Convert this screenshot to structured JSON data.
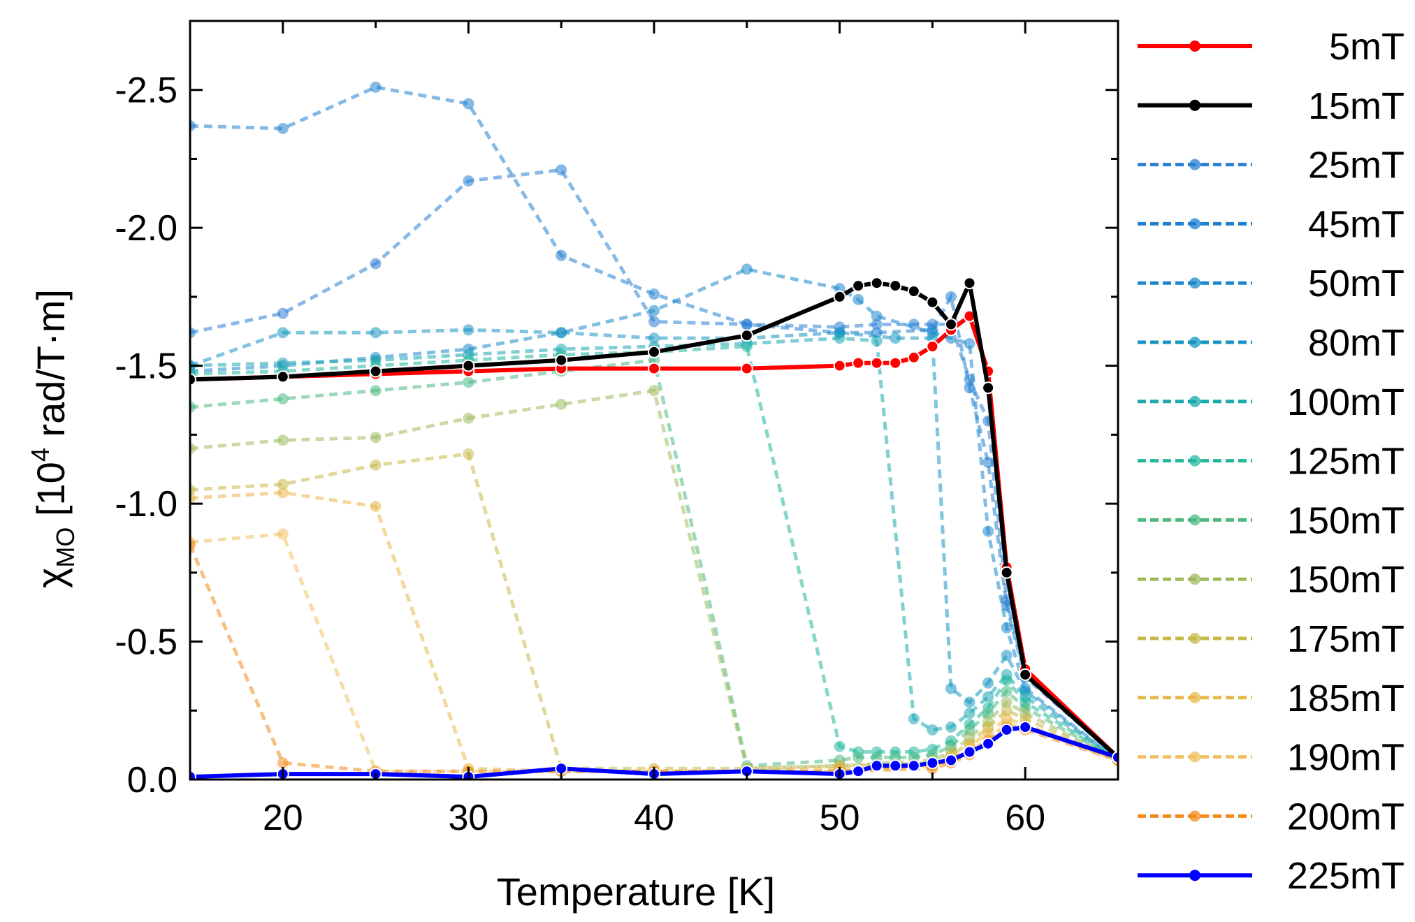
{
  "chart_data": {
    "type": "line",
    "xlabel": "Temperature [K]",
    "ylabel": {
      "symbol": "χ",
      "subscript": "MO",
      "unit_prefix": " [10",
      "exponent": "4",
      "unit_suffix": " rad/T·m]"
    },
    "xlim": [
      15,
      65
    ],
    "ylim": [
      0.0,
      -2.75
    ],
    "y_reversed": true,
    "x_ticks": [
      20,
      30,
      40,
      50,
      60
    ],
    "y_ticks": [
      0.0,
      -0.5,
      -1.0,
      -1.5,
      -2.0,
      -2.5
    ],
    "x_tick_labels": [
      "20",
      "30",
      "40",
      "50",
      "60"
    ],
    "y_tick_labels": [
      "0.0",
      "-0.5",
      "-1.0",
      "-1.5",
      "-2.0",
      "-2.5"
    ],
    "series": [
      {
        "name": "5mT",
        "color": "#ff0000",
        "style": "solid",
        "x": [
          15,
          20,
          25,
          30,
          35,
          40,
          45,
          50,
          51,
          52,
          53,
          54,
          55,
          56,
          57,
          58,
          59,
          60,
          65
        ],
        "y": [
          -1.45,
          -1.46,
          -1.47,
          -1.48,
          -1.49,
          -1.49,
          -1.49,
          -1.5,
          -1.51,
          -1.51,
          -1.51,
          -1.53,
          -1.57,
          -1.63,
          -1.68,
          -1.48,
          -0.77,
          -0.4,
          -0.08
        ]
      },
      {
        "name": "15mT",
        "color": "#000000",
        "style": "solid",
        "x": [
          15,
          20,
          25,
          30,
          35,
          40,
          45,
          50,
          51,
          52,
          53,
          54,
          55,
          56,
          57,
          58,
          59,
          60,
          65
        ],
        "y": [
          -1.45,
          -1.46,
          -1.48,
          -1.5,
          -1.52,
          -1.55,
          -1.61,
          -1.75,
          -1.79,
          -1.8,
          -1.79,
          -1.77,
          -1.73,
          -1.65,
          -1.8,
          -1.42,
          -0.75,
          -0.38,
          -0.08
        ]
      },
      {
        "name": "25mT",
        "color": "#2a7fd6",
        "style": "dashed",
        "x": [
          15,
          20,
          25,
          30,
          35,
          40,
          45,
          50,
          52,
          54,
          55,
          56,
          57,
          58,
          59,
          60,
          65
        ],
        "y": [
          -1.62,
          -1.69,
          -1.87,
          -2.17,
          -2.21,
          -1.66,
          -1.65,
          -1.64,
          -1.65,
          -1.65,
          -1.65,
          -1.65,
          -1.45,
          -1.3,
          -0.65,
          -0.38,
          -0.08
        ]
      },
      {
        "name": "45mT",
        "color": "#2080d2",
        "style": "dashed",
        "x": [
          15,
          20,
          25,
          30,
          35,
          40,
          45,
          50,
          52,
          55,
          56,
          57,
          58,
          59,
          60,
          65
        ],
        "y": [
          -2.37,
          -2.36,
          -2.51,
          -2.45,
          -1.9,
          -1.76,
          -1.65,
          -1.62,
          -1.62,
          -1.63,
          -1.75,
          -1.42,
          -1.15,
          -0.63,
          -0.37,
          -0.08
        ]
      },
      {
        "name": "50mT",
        "color": "#1c88cc",
        "style": "dashed",
        "x": [
          15,
          20,
          25,
          30,
          35,
          40,
          45,
          50,
          51,
          52,
          55,
          56,
          57,
          58,
          59,
          60,
          65
        ],
        "y": [
          -1.48,
          -1.5,
          -1.53,
          -1.56,
          -1.62,
          -1.7,
          -1.85,
          -1.78,
          -1.74,
          -1.68,
          -1.62,
          -1.6,
          -1.58,
          -0.9,
          -0.55,
          -0.33,
          -0.07
        ]
      },
      {
        "name": "80mT",
        "color": "#1595c2",
        "style": "dashed",
        "x": [
          15,
          20,
          25,
          30,
          35,
          40,
          45,
          50,
          53,
          55,
          56,
          57,
          58,
          59,
          60,
          65
        ],
        "y": [
          -1.5,
          -1.62,
          -1.62,
          -1.63,
          -1.62,
          -1.6,
          -1.6,
          -1.62,
          -1.6,
          -1.6,
          -0.33,
          -0.28,
          -0.35,
          -0.45,
          -0.32,
          -0.07
        ]
      },
      {
        "name": "100mT",
        "color": "#1aa8b0",
        "style": "dashed",
        "x": [
          15,
          20,
          25,
          30,
          35,
          40,
          45,
          50,
          52,
          54,
          55,
          56,
          57,
          58,
          59,
          60,
          65
        ],
        "y": [
          -1.5,
          -1.51,
          -1.52,
          -1.54,
          -1.56,
          -1.57,
          -1.58,
          -1.6,
          -1.59,
          -0.22,
          -0.18,
          -0.19,
          -0.24,
          -0.3,
          -0.38,
          -0.3,
          -0.07
        ]
      },
      {
        "name": "125mT",
        "color": "#20b89c",
        "style": "dashed",
        "x": [
          15,
          20,
          25,
          30,
          35,
          40,
          45,
          50,
          51,
          52,
          53,
          54,
          55,
          56,
          57,
          58,
          59,
          60,
          65
        ],
        "y": [
          -1.47,
          -1.48,
          -1.5,
          -1.52,
          -1.54,
          -1.55,
          -1.57,
          -0.12,
          -0.1,
          -0.1,
          -0.1,
          -0.1,
          -0.11,
          -0.14,
          -0.2,
          -0.26,
          -0.36,
          -0.28,
          -0.07
        ]
      },
      {
        "name": "150mT",
        "color": "#4bb882",
        "style": "dashed",
        "x": [
          15,
          20,
          25,
          30,
          35,
          40,
          45,
          50,
          51,
          52,
          53,
          54,
          55,
          56,
          57,
          58,
          59,
          60,
          65
        ],
        "y": [
          -1.35,
          -1.38,
          -1.41,
          -1.44,
          -1.48,
          -1.52,
          -0.05,
          -0.07,
          -0.08,
          -0.08,
          -0.08,
          -0.08,
          -0.09,
          -0.12,
          -0.18,
          -0.24,
          -0.32,
          -0.26,
          -0.07
        ]
      },
      {
        "name": "150mT",
        "color": "#9dbb5c",
        "style": "dashed",
        "x": [
          15,
          20,
          25,
          30,
          35,
          40,
          45,
          50,
          55,
          56,
          57,
          58,
          59,
          60,
          65
        ],
        "y": [
          -1.2,
          -1.23,
          -1.24,
          -1.31,
          -1.36,
          -1.41,
          -0.04,
          -0.05,
          -0.07,
          -0.1,
          -0.15,
          -0.21,
          -0.28,
          -0.24,
          -0.07
        ]
      },
      {
        "name": "175mT",
        "color": "#c8b84a",
        "style": "dashed",
        "x": [
          15,
          20,
          25,
          30,
          35,
          40,
          45,
          50,
          55,
          56,
          57,
          58,
          59,
          60,
          65
        ],
        "y": [
          -1.05,
          -1.07,
          -1.14,
          -1.18,
          -0.04,
          -0.04,
          -0.04,
          -0.05,
          -0.06,
          -0.09,
          -0.13,
          -0.19,
          -0.25,
          -0.22,
          -0.07
        ]
      },
      {
        "name": "185mT",
        "color": "#e8b84a",
        "style": "dashed",
        "x": [
          15,
          20,
          25,
          30,
          35,
          40,
          45,
          50,
          55,
          56,
          57,
          58,
          59,
          60,
          65
        ],
        "y": [
          -1.02,
          -1.04,
          -0.99,
          -0.04,
          -0.03,
          -0.03,
          -0.03,
          -0.04,
          -0.05,
          -0.08,
          -0.12,
          -0.17,
          -0.22,
          -0.2,
          -0.07
        ]
      },
      {
        "name": "190mT",
        "color": "#f2c060",
        "style": "dashed",
        "x": [
          15,
          20,
          25,
          30,
          35,
          40,
          45,
          50,
          55,
          56,
          57,
          58,
          59,
          60,
          65
        ],
        "y": [
          -0.86,
          -0.89,
          -0.03,
          -0.03,
          -0.03,
          -0.03,
          -0.03,
          -0.03,
          -0.05,
          -0.07,
          -0.1,
          -0.15,
          -0.2,
          -0.19,
          -0.07
        ]
      },
      {
        "name": "200mT",
        "color": "#f08a1a",
        "style": "dashed",
        "x": [
          15,
          20,
          25,
          30,
          35,
          40,
          45,
          50,
          55,
          56,
          57,
          58,
          59,
          60,
          65
        ],
        "y": [
          -0.85,
          -0.06,
          -0.03,
          -0.03,
          -0.03,
          -0.03,
          -0.03,
          -0.03,
          -0.04,
          -0.06,
          -0.09,
          -0.14,
          -0.19,
          -0.18,
          -0.07
        ]
      },
      {
        "name": "225mT",
        "color": "#0000ff",
        "style": "solid",
        "x": [
          15,
          20,
          25,
          30,
          35,
          40,
          45,
          50,
          51,
          52,
          53,
          54,
          55,
          56,
          57,
          58,
          59,
          60,
          65
        ],
        "y": [
          -0.01,
          -0.02,
          -0.02,
          -0.01,
          -0.04,
          -0.02,
          -0.03,
          -0.02,
          -0.03,
          -0.05,
          -0.05,
          -0.05,
          -0.06,
          -0.07,
          -0.1,
          -0.13,
          -0.18,
          -0.19,
          -0.08
        ]
      }
    ],
    "legend_position": "right"
  }
}
